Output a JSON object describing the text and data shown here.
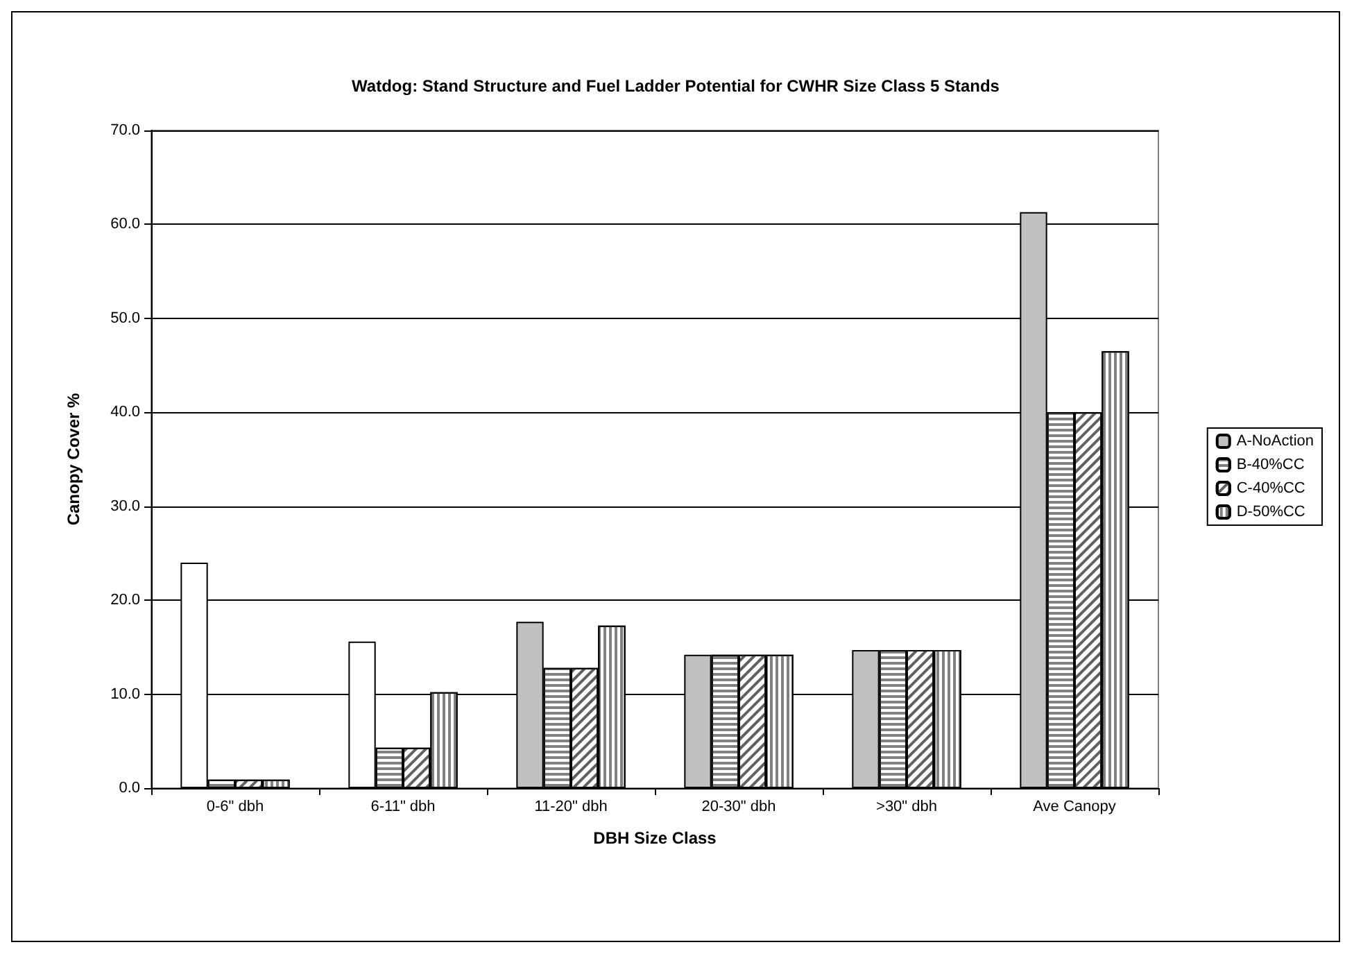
{
  "chart_data": {
    "type": "bar",
    "title": "Watdog: Stand Structure and Fuel Ladder Potential for CWHR Size Class 5 Stands",
    "xlabel": "DBH Size Class",
    "ylabel": "Canopy Cover %",
    "categories": [
      "0-6\" dbh",
      "6-11\" dbh",
      "11-20\" dbh",
      "20-30\" dbh",
      ">30\" dbh",
      "Ave Canopy"
    ],
    "series": [
      {
        "name": "A-NoAction",
        "color": "#c0c0c0",
        "colors": [
          "#ffffff",
          "#ffffff",
          "#c0c0c0",
          "#c0c0c0",
          "#c0c0c0",
          "#c0c0c0"
        ],
        "values": [
          24.0,
          15.6,
          17.7,
          14.2,
          14.7,
          61.3
        ]
      },
      {
        "name": "B-40%CC",
        "color": "#ffffff",
        "values": [
          0.9,
          4.3,
          12.8,
          14.2,
          14.7,
          40.0
        ]
      },
      {
        "name": "C-40%CC",
        "color": "#ffffff",
        "values": [
          0.9,
          4.3,
          12.8,
          14.2,
          14.7,
          40.0
        ]
      },
      {
        "name": "D-50%CC",
        "color": "#ffffff",
        "values": [
          0.9,
          10.2,
          17.3,
          14.2,
          14.7,
          46.5
        ]
      }
    ],
    "ylim": [
      0,
      70
    ],
    "yticks": [
      {
        "value": 0,
        "label": "0.0"
      },
      {
        "value": 10,
        "label": "10.0"
      },
      {
        "value": 20,
        "label": "20.0"
      },
      {
        "value": 30,
        "label": "30.0"
      },
      {
        "value": 40,
        "label": "40.0"
      },
      {
        "value": 50,
        "label": "50.0"
      },
      {
        "value": 60,
        "label": "60.0"
      },
      {
        "value": 70,
        "label": "70.0"
      }
    ],
    "grid": "y",
    "legend": "right"
  }
}
